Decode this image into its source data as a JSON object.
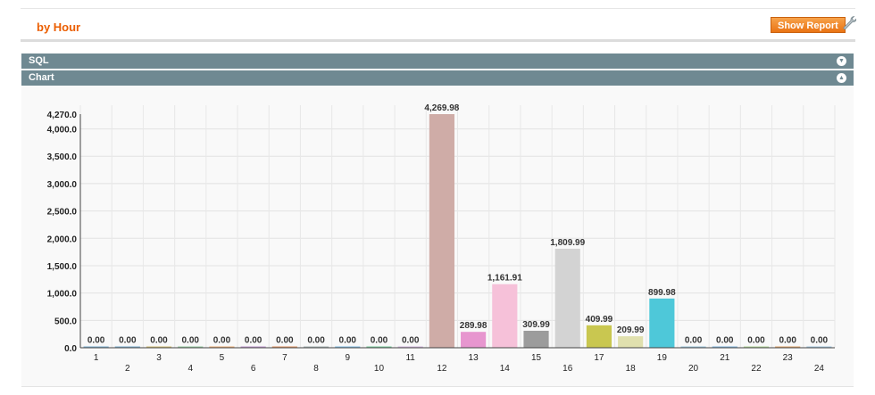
{
  "header": {
    "title": "by Hour",
    "show_report_label": "Show Report"
  },
  "sections": [
    {
      "label": "SQL",
      "toggle": "▼"
    },
    {
      "label": "Chart",
      "toggle": "▲"
    }
  ],
  "colors": {
    "accent": "#eb5e00",
    "section_bar": "#6f8992",
    "button": "#ea7414"
  },
  "chart_data": {
    "type": "bar",
    "categories": [
      "1",
      "2",
      "3",
      "4",
      "5",
      "6",
      "7",
      "8",
      "9",
      "10",
      "11",
      "12",
      "13",
      "14",
      "15",
      "16",
      "17",
      "18",
      "19",
      "20",
      "21",
      "22",
      "23",
      "24"
    ],
    "values": [
      0,
      0,
      0,
      0,
      0,
      0,
      0,
      0,
      0,
      0,
      0,
      4269.98,
      289.98,
      1161.91,
      309.99,
      1809.99,
      409.99,
      209.99,
      899.98,
      0,
      0,
      0,
      0,
      0
    ],
    "value_labels": [
      "0.00",
      "0.00",
      "0.00",
      "0.00",
      "0.00",
      "0.00",
      "0.00",
      "0.00",
      "0.00",
      "0.00",
      "0.00",
      "4,269.98",
      "289.98",
      "1,161.91",
      "309.99",
      "1,809.99",
      "409.99",
      "209.99",
      "899.98",
      "0.00",
      "0.00",
      "0.00",
      "0.00",
      "0.00"
    ],
    "bar_colors": [
      "#7fb3d5",
      "#7fb3d5",
      "#d8c47a",
      "#9ccfa6",
      "#f0b27a",
      "#c39bd3",
      "#e59866",
      "#aab7b8",
      "#85c1e9",
      "#7dcea0",
      "#d7bde2",
      "#cfaca7",
      "#e796cf",
      "#f6c1d9",
      "#9c9c9c",
      "#d3d3d3",
      "#c9c750",
      "#e0e0ae",
      "#4ec8d9",
      "#9ec9e0",
      "#82b7e0",
      "#b5d99c",
      "#e5a96e",
      "#a9cce3"
    ],
    "y_ticks": [
      "0.0",
      "500.0",
      "1,000.0",
      "1,500.0",
      "2,000.0",
      "2,500.0",
      "3,000.0",
      "3,500.0",
      "4,000.0"
    ],
    "y_tick_values": [
      0,
      500,
      1000,
      1500,
      2000,
      2500,
      3000,
      3500,
      4000
    ],
    "y_max_label": "4,270.0",
    "ylim": [
      0,
      4270
    ],
    "grid": true
  }
}
